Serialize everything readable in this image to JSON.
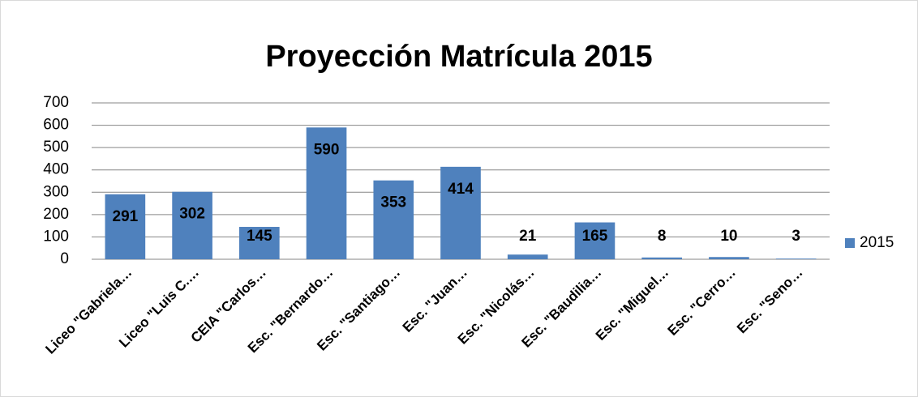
{
  "chart_data": {
    "type": "bar",
    "title": "Proyección Matrícula 2015",
    "categories": [
      "Liceo \"Gabriela…",
      "Liceo \"Luis C.…",
      "CEIA \"Carlos…",
      "Esc. \"Bernardo…",
      "Esc. \"Santiago…",
      "Esc. \"Juan…",
      "Esc. \"Nicolás…",
      "Esc. \"Baudilia…",
      "Esc. \"Miguel…",
      "Esc. \"Cerro…",
      "Esc. \"Seno…"
    ],
    "series": [
      {
        "name": "2015",
        "color": "#4f81bd",
        "values": [
          291,
          302,
          145,
          590,
          353,
          414,
          21,
          165,
          8,
          10,
          3
        ]
      }
    ],
    "ylim": [
      0,
      700
    ],
    "yticks": [
      0,
      100,
      200,
      300,
      400,
      500,
      600,
      700
    ],
    "grid": true,
    "legend": "right"
  }
}
